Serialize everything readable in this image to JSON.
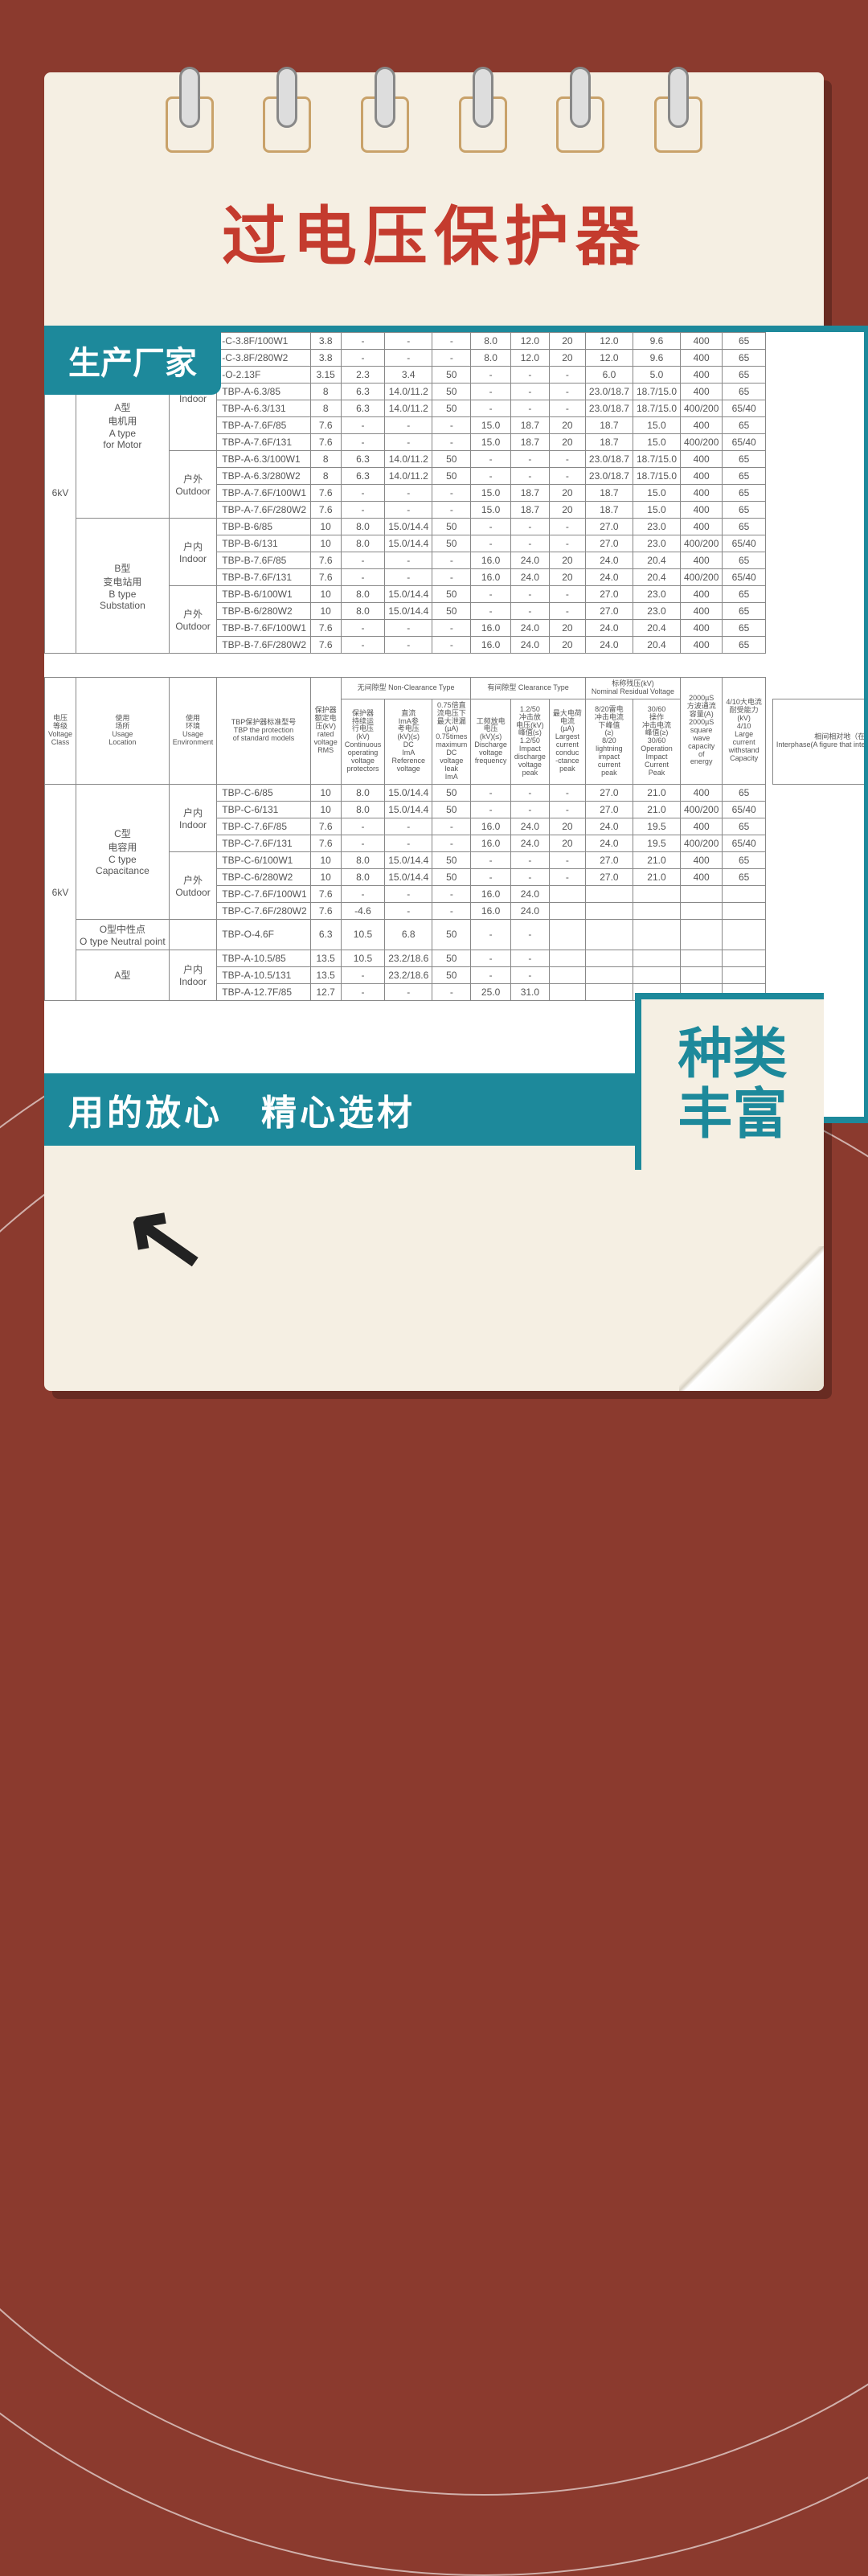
{
  "page_title": "过电压保护器",
  "badges": {
    "manufacturer": "生产厂家",
    "bottom_bar": "用的放心　精心选材",
    "side_line1": "种类",
    "side_line2": "丰富"
  },
  "colors": {
    "background": "#8b3a2e",
    "teal": "#1d899b",
    "title_red": "#c43b2e",
    "paper": "#f5efe3",
    "table_border": "#888888",
    "text": "#555555"
  },
  "table1": {
    "voltage_class": "6kV",
    "groups": [
      {
        "type_cn": "A型\n电机用",
        "type_en": "A type\nfor Motor",
        "envs": [
          {
            "env_cn": "户内",
            "env_en": "Indoor",
            "rows": [
              {
                "model": "-C-3.8F/100W1",
                "v": "3.8",
                "c2": "-",
                "c3": "-",
                "c4": "-",
                "c5": "8.0",
                "c6": "12.0",
                "c7": "20",
                "c8": "12.0",
                "c9": "9.6",
                "c10": "400",
                "c11": "65"
              },
              {
                "model": "-C-3.8F/280W2",
                "v": "3.8",
                "c2": "-",
                "c3": "-",
                "c4": "-",
                "c5": "8.0",
                "c6": "12.0",
                "c7": "20",
                "c8": "12.0",
                "c9": "9.6",
                "c10": "400",
                "c11": "65"
              },
              {
                "model": "-O-2.13F",
                "v": "3.15",
                "c2": "2.3",
                "c3": "3.4",
                "c4": "50",
                "c5": "-",
                "c6": "-",
                "c7": "-",
                "c8": "6.0",
                "c9": "5.0",
                "c10": "400",
                "c11": "65"
              },
              {
                "model": "TBP-A-6.3/85",
                "v": "8",
                "c2": "6.3",
                "c3": "14.0/11.2",
                "c4": "50",
                "c5": "-",
                "c6": "-",
                "c7": "-",
                "c8": "23.0/18.7",
                "c9": "18.7/15.0",
                "c10": "400",
                "c11": "65"
              },
              {
                "model": "TBP-A-6.3/131",
                "v": "8",
                "c2": "6.3",
                "c3": "14.0/11.2",
                "c4": "50",
                "c5": "-",
                "c6": "-",
                "c7": "-",
                "c8": "23.0/18.7",
                "c9": "18.7/15.0",
                "c10": "400/200",
                "c11": "65/40"
              },
              {
                "model": "TBP-A-7.6F/85",
                "v": "7.6",
                "c2": "-",
                "c3": "-",
                "c4": "-",
                "c5": "15.0",
                "c6": "18.7",
                "c7": "20",
                "c8": "18.7",
                "c9": "15.0",
                "c10": "400",
                "c11": "65"
              },
              {
                "model": "TBP-A-7.6F/131",
                "v": "7.6",
                "c2": "-",
                "c3": "-",
                "c4": "-",
                "c5": "15.0",
                "c6": "18.7",
                "c7": "20",
                "c8": "18.7",
                "c9": "15.0",
                "c10": "400/200",
                "c11": "65/40"
              }
            ]
          },
          {
            "env_cn": "户外",
            "env_en": "Outdoor",
            "rows": [
              {
                "model": "TBP-A-6.3/100W1",
                "v": "8",
                "c2": "6.3",
                "c3": "14.0/11.2",
                "c4": "50",
                "c5": "-",
                "c6": "-",
                "c7": "-",
                "c8": "23.0/18.7",
                "c9": "18.7/15.0",
                "c10": "400",
                "c11": "65"
              },
              {
                "model": "TBP-A-6.3/280W2",
                "v": "8",
                "c2": "6.3",
                "c3": "14.0/11.2",
                "c4": "50",
                "c5": "-",
                "c6": "-",
                "c7": "-",
                "c8": "23.0/18.7",
                "c9": "18.7/15.0",
                "c10": "400",
                "c11": "65"
              },
              {
                "model": "TBP-A-7.6F/100W1",
                "v": "7.6",
                "c2": "-",
                "c3": "-",
                "c4": "-",
                "c5": "15.0",
                "c6": "18.7",
                "c7": "20",
                "c8": "18.7",
                "c9": "15.0",
                "c10": "400",
                "c11": "65"
              },
              {
                "model": "TBP-A-7.6F/280W2",
                "v": "7.6",
                "c2": "-",
                "c3": "-",
                "c4": "-",
                "c5": "15.0",
                "c6": "18.7",
                "c7": "20",
                "c8": "18.7",
                "c9": "15.0",
                "c10": "400",
                "c11": "65"
              }
            ]
          }
        ]
      },
      {
        "type_cn": "B型\n变电站用",
        "type_en": "B type\nSubstation",
        "envs": [
          {
            "env_cn": "户内",
            "env_en": "Indoor",
            "rows": [
              {
                "model": "TBP-B-6/85",
                "v": "10",
                "c2": "8.0",
                "c3": "15.0/14.4",
                "c4": "50",
                "c5": "-",
                "c6": "-",
                "c7": "-",
                "c8": "27.0",
                "c9": "23.0",
                "c10": "400",
                "c11": "65"
              },
              {
                "model": "TBP-B-6/131",
                "v": "10",
                "c2": "8.0",
                "c3": "15.0/14.4",
                "c4": "50",
                "c5": "-",
                "c6": "-",
                "c7": "-",
                "c8": "27.0",
                "c9": "23.0",
                "c10": "400/200",
                "c11": "65/40"
              },
              {
                "model": "TBP-B-7.6F/85",
                "v": "7.6",
                "c2": "-",
                "c3": "-",
                "c4": "-",
                "c5": "16.0",
                "c6": "24.0",
                "c7": "20",
                "c8": "24.0",
                "c9": "20.4",
                "c10": "400",
                "c11": "65"
              },
              {
                "model": "TBP-B-7.6F/131",
                "v": "7.6",
                "c2": "-",
                "c3": "-",
                "c4": "-",
                "c5": "16.0",
                "c6": "24.0",
                "c7": "20",
                "c8": "24.0",
                "c9": "20.4",
                "c10": "400/200",
                "c11": "65/40"
              }
            ]
          },
          {
            "env_cn": "户外",
            "env_en": "Outdoor",
            "rows": [
              {
                "model": "TBP-B-6/100W1",
                "v": "10",
                "c2": "8.0",
                "c3": "15.0/14.4",
                "c4": "50",
                "c5": "-",
                "c6": "-",
                "c7": "-",
                "c8": "27.0",
                "c9": "23.0",
                "c10": "400",
                "c11": "65"
              },
              {
                "model": "TBP-B-6/280W2",
                "v": "10",
                "c2": "8.0",
                "c3": "15.0/14.4",
                "c4": "50",
                "c5": "-",
                "c6": "-",
                "c7": "-",
                "c8": "27.0",
                "c9": "23.0",
                "c10": "400",
                "c11": "65"
              },
              {
                "model": "TBP-B-7.6F/100W1",
                "v": "7.6",
                "c2": "-",
                "c3": "-",
                "c4": "-",
                "c5": "16.0",
                "c6": "24.0",
                "c7": "20",
                "c8": "24.0",
                "c9": "20.4",
                "c10": "400",
                "c11": "65"
              },
              {
                "model": "TBP-B-7.6F/280W2",
                "v": "7.6",
                "c2": "-",
                "c3": "-",
                "c4": "-",
                "c5": "16.0",
                "c6": "24.0",
                "c7": "20",
                "c8": "24.0",
                "c9": "20.4",
                "c10": "400",
                "c11": "65"
              }
            ]
          }
        ]
      }
    ]
  },
  "table2_header": {
    "cols": [
      "电压\n等级\nVoltage\nClass",
      "使用\n场所\nUsage\nLocation",
      "使用\n环境\nUsage\nEnvironment",
      "TBP保护器标准型号\nTBP the protection\nof standard models",
      "保护器\n额定电\n压(kV)\nrated\nvoltage\nRMS",
      "保护器\n持续运\n行电压\n(kV)\nContinuous\noperating\nvoltage\nprotectors",
      "直流\nImA参\n考电压\n(kV)(≤)\nDC\nImA\nReference\nvoltage",
      "0.75倍直\n流电压下\n最大泄漏\n(µA)\n0.75times\nmaximum\nDC\nvoltage\nleak\nImA",
      "工频放电\n电压\n(kV)(≤)\nDischarge\nvoltage\nfrequency",
      "1.2/50\n冲击放\n电压(kV)\n峰值(≤)\n1.2/50\nImpact\ndischarge\nvoltage\npeak",
      "最大电荷\n电流\n(µA)\nLargest\ncurrent\nconduc\n-ctance\npeak",
      "8/20雷电\n冲击电流\n下峰值\n(≥)\n8/20\nlightning\nimpact\ncurrent\npeak",
      "30/60\n操作\n冲击电流\n峰值(≥)\n30/60\nOperation\nImpact\nCurrent\nPeak",
      "2000µS\n方波通流\n容量(A)\n2000µS\nsquare\nwave\ncapacity\nof\nenergy",
      "4/10大电流\n耐受能力\n(kV)\n4/10\nLarge\ncurrent\nwithstand\nCapacity"
    ],
    "span_labels": {
      "nonclearance": "无间隙型 Non-Clearance Type",
      "clearance": "有间隙型 Clearance Type",
      "residual": "标称残压(kV)\nNominal Residual Voltage",
      "interphase": "相间相对地（在一个数字表示相间和相对地参数相同）\nInterphase(A figure that interphase and relative to earth the same parameters)"
    }
  },
  "table2": {
    "voltage_class": "6kV",
    "groups": [
      {
        "type_cn": "C型\n电容用",
        "type_en": "C type\nCapacitance",
        "envs": [
          {
            "env_cn": "户内",
            "env_en": "Indoor",
            "rows": [
              {
                "model": "TBP-C-6/85",
                "v": "10",
                "c2": "8.0",
                "c3": "15.0/14.4",
                "c4": "50",
                "c5": "-",
                "c6": "-",
                "c7": "-",
                "c8": "27.0",
                "c9": "21.0",
                "c10": "400",
                "c11": "65"
              },
              {
                "model": "TBP-C-6/131",
                "v": "10",
                "c2": "8.0",
                "c3": "15.0/14.4",
                "c4": "50",
                "c5": "-",
                "c6": "-",
                "c7": "-",
                "c8": "27.0",
                "c9": "21.0",
                "c10": "400/200",
                "c11": "65/40"
              },
              {
                "model": "TBP-C-7.6F/85",
                "v": "7.6",
                "c2": "-",
                "c3": "-",
                "c4": "-",
                "c5": "16.0",
                "c6": "24.0",
                "c7": "20",
                "c8": "24.0",
                "c9": "19.5",
                "c10": "400",
                "c11": "65"
              },
              {
                "model": "TBP-C-7.6F/131",
                "v": "7.6",
                "c2": "-",
                "c3": "-",
                "c4": "-",
                "c5": "16.0",
                "c6": "24.0",
                "c7": "20",
                "c8": "24.0",
                "c9": "19.5",
                "c10": "400/200",
                "c11": "65/40"
              }
            ]
          },
          {
            "env_cn": "户外",
            "env_en": "Outdoor",
            "rows": [
              {
                "model": "TBP-C-6/100W1",
                "v": "10",
                "c2": "8.0",
                "c3": "15.0/14.4",
                "c4": "50",
                "c5": "-",
                "c6": "-",
                "c7": "-",
                "c8": "27.0",
                "c9": "21.0",
                "c10": "400",
                "c11": "65"
              },
              {
                "model": "TBP-C-6/280W2",
                "v": "10",
                "c2": "8.0",
                "c3": "15.0/14.4",
                "c4": "50",
                "c5": "-",
                "c6": "-",
                "c7": "-",
                "c8": "27.0",
                "c9": "21.0",
                "c10": "400",
                "c11": "65"
              },
              {
                "model": "TBP-C-7.6F/100W1",
                "v": "7.6",
                "c2": "-",
                "c3": "-",
                "c4": "-",
                "c5": "16.0",
                "c6": "24.0",
                "c7": "",
                "c8": "",
                "c9": "",
                "c10": "",
                "c11": ""
              },
              {
                "model": "TBP-C-7.6F/280W2",
                "v": "7.6",
                "c2": "-4.6",
                "c3": "-",
                "c4": "-",
                "c5": "16.0",
                "c6": "24.0",
                "c7": "",
                "c8": "",
                "c9": "",
                "c10": "",
                "c11": ""
              }
            ]
          }
        ]
      },
      {
        "type_cn": "O型中性点",
        "type_en": "O type Neutral point",
        "envs": [
          {
            "env_cn": "",
            "env_en": "",
            "rows": [
              {
                "model": "TBP-O-4.6F",
                "v": "6.3",
                "c2": "10.5",
                "c3": "6.8",
                "c4": "50",
                "c5": "-",
                "c6": "-",
                "c7": "",
                "c8": "",
                "c9": "",
                "c10": "",
                "c11": ""
              }
            ]
          }
        ]
      },
      {
        "type_cn": "A型",
        "type_en": "",
        "envs": [
          {
            "env_cn": "户内",
            "env_en": "Indoor",
            "rows": [
              {
                "model": "TBP-A-10.5/85",
                "v": "13.5",
                "c2": "10.5",
                "c3": "23.2/18.6",
                "c4": "50",
                "c5": "-",
                "c6": "-",
                "c7": "",
                "c8": "",
                "c9": "",
                "c10": "",
                "c11": ""
              },
              {
                "model": "TBP-A-10.5/131",
                "v": "13.5",
                "c2": "-",
                "c3": "23.2/18.6",
                "c4": "50",
                "c5": "-",
                "c6": "-",
                "c7": "",
                "c8": "",
                "c9": "",
                "c10": "",
                "c11": ""
              },
              {
                "model": "TBP-A-12.7F/85",
                "v": "12.7",
                "c2": "-",
                "c3": "-",
                "c4": "-",
                "c5": "25.0",
                "c6": "31.0",
                "c7": "",
                "c8": "",
                "c9": "",
                "c10": "",
                "c11": ""
              }
            ]
          }
        ]
      }
    ]
  }
}
